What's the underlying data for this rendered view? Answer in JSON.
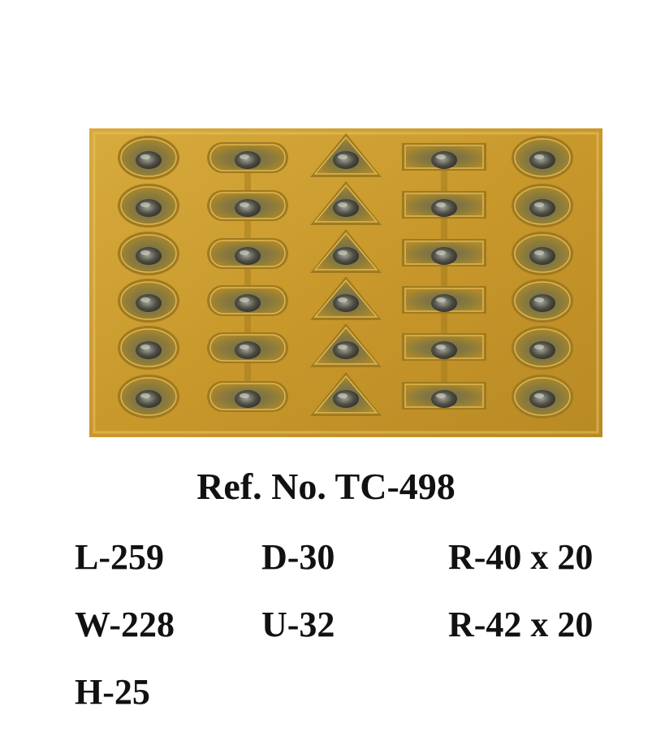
{
  "reference": "Ref. No. TC-498",
  "specs": {
    "length": "L-259",
    "width": "W-228",
    "height": "H-25",
    "d": "D-30",
    "u": "U-32",
    "r1": "R-40 x 20",
    "r2": "R-42 x 20"
  },
  "photo": {
    "tray_color": "#c89b2c",
    "cavity_shapes": [
      "circle",
      "stadium",
      "triangle",
      "T-slot",
      "circle"
    ],
    "rows": 6
  }
}
